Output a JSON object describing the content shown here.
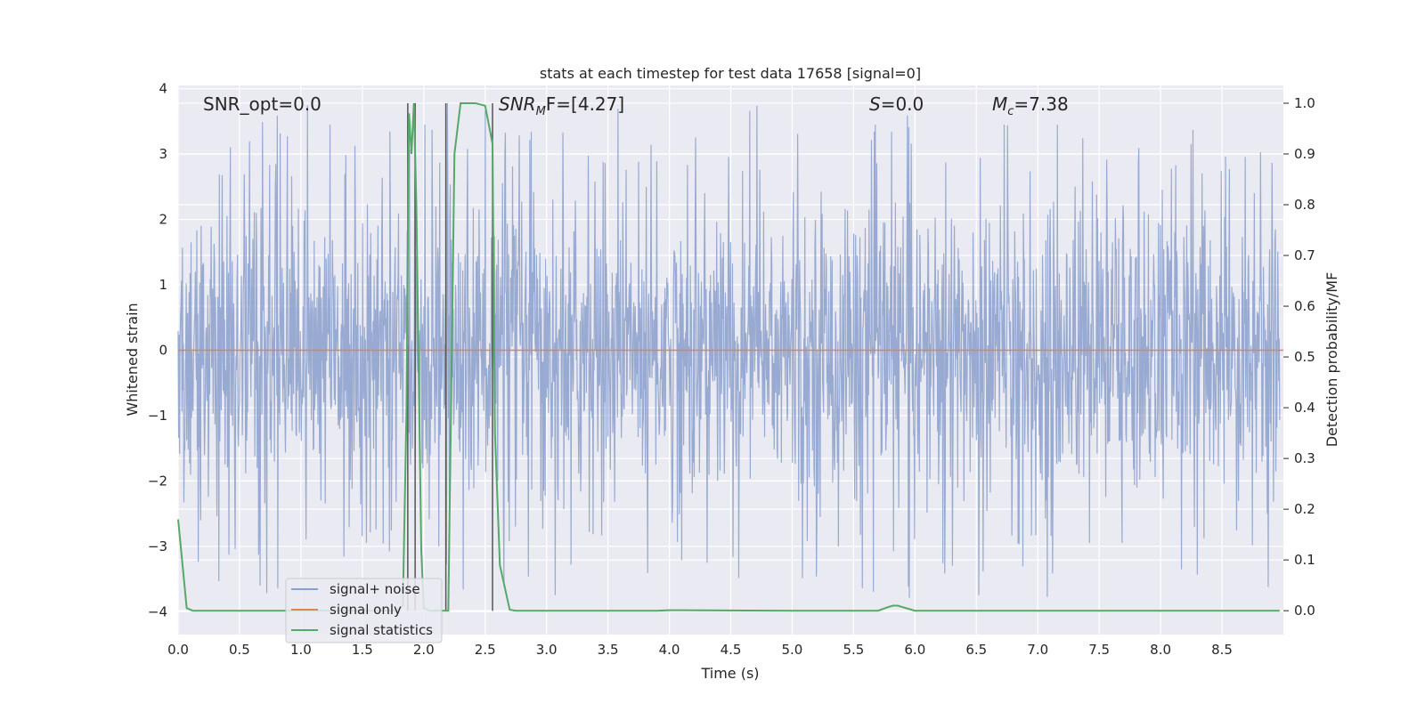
{
  "chart_data": {
    "type": "line",
    "title": "stats at each timestep for test data 17658 [signal=0]",
    "xlabel": "Time (s)",
    "ylabel": "Whitened strain",
    "y2label": "Detection probability/MF",
    "xlim": [
      0.0,
      9.0
    ],
    "ylim": [
      -4.35,
      4.05
    ],
    "y2lim": [
      -0.047,
      1.035
    ],
    "x_ticks": [
      0.0,
      0.5,
      1.0,
      1.5,
      2.0,
      2.5,
      3.0,
      3.5,
      4.0,
      4.5,
      5.0,
      5.5,
      6.0,
      6.5,
      7.0,
      7.5,
      8.0,
      8.5
    ],
    "x_tick_labels": [
      "0.0",
      "0.5",
      "1.0",
      "1.5",
      "2.0",
      "2.5",
      "3.0",
      "3.5",
      "4.0",
      "4.5",
      "5.0",
      "5.5",
      "6.0",
      "6.5",
      "7.0",
      "7.5",
      "8.0",
      "8.5"
    ],
    "y_ticks": [
      4,
      3,
      2,
      1,
      0,
      -1,
      -2,
      -3,
      -4
    ],
    "y_tick_labels": [
      "4",
      "3",
      "2",
      "1",
      "0",
      "−1",
      "−2",
      "−3",
      "−4"
    ],
    "y2_ticks": [
      1.0,
      0.9,
      0.8,
      0.7,
      0.6,
      0.5,
      0.4,
      0.3,
      0.2,
      0.1,
      0.0
    ],
    "y2_tick_labels": [
      "1.0",
      "0.9",
      "0.8",
      "0.7",
      "0.6",
      "0.5",
      "0.4",
      "0.3",
      "0.2",
      "0.1",
      "0.0"
    ],
    "grid": true,
    "legend_position": "lower-left",
    "annotations": {
      "snr_opt": "SNR_opt=0.0",
      "snr_mf_label": "SNR",
      "snr_mf_sub": "M",
      "snr_mf_rest": "F=[4.27]",
      "s_label": "S",
      "s_rest": "=0.0",
      "mc_label": "M",
      "mc_sub": "c",
      "mc_rest": "=7.38"
    },
    "series": [
      {
        "name": "signal+ noise",
        "color": "#8a9fcb",
        "description_hint": "noise",
        "envelope_max": 3.45,
        "envelope_min": -3.6
      },
      {
        "name": "signal only",
        "color": "#dd8452",
        "x": [
          0.0,
          9.0
        ],
        "y": [
          0.0,
          0.0
        ]
      },
      {
        "name": "signal statistics",
        "color": "#55a868",
        "axis": "right",
        "x": [
          0.0,
          0.07,
          0.12,
          0.2,
          0.5,
          1.0,
          1.5,
          1.78,
          1.83,
          1.86,
          1.88,
          1.9,
          1.92,
          1.94,
          1.96,
          1.98,
          2.0,
          2.05,
          2.2,
          2.25,
          2.3,
          2.35,
          2.42,
          2.5,
          2.56,
          2.58,
          2.62,
          2.7,
          2.75,
          3.0,
          3.9,
          4.0,
          5.0,
          5.7,
          5.78,
          5.82,
          5.86,
          5.9,
          6.0,
          7.0,
          8.0,
          8.97
        ],
        "y": [
          0.18,
          0.005,
          0.0,
          0.0,
          0.0,
          0.0,
          0.0,
          0.0,
          0.01,
          0.4,
          0.98,
          0.9,
          1.0,
          0.8,
          0.45,
          0.12,
          0.005,
          0.0,
          0.0,
          0.9,
          1.0,
          1.0,
          1.0,
          0.995,
          0.92,
          0.35,
          0.09,
          0.002,
          0.0,
          0.0,
          0.0,
          0.001,
          0.0,
          0.0,
          0.007,
          0.01,
          0.01,
          0.007,
          0.0,
          0.0,
          0.0,
          0.0
        ]
      }
    ],
    "vertical_markers": [
      1.87,
      1.93,
      2.18,
      2.56
    ]
  }
}
